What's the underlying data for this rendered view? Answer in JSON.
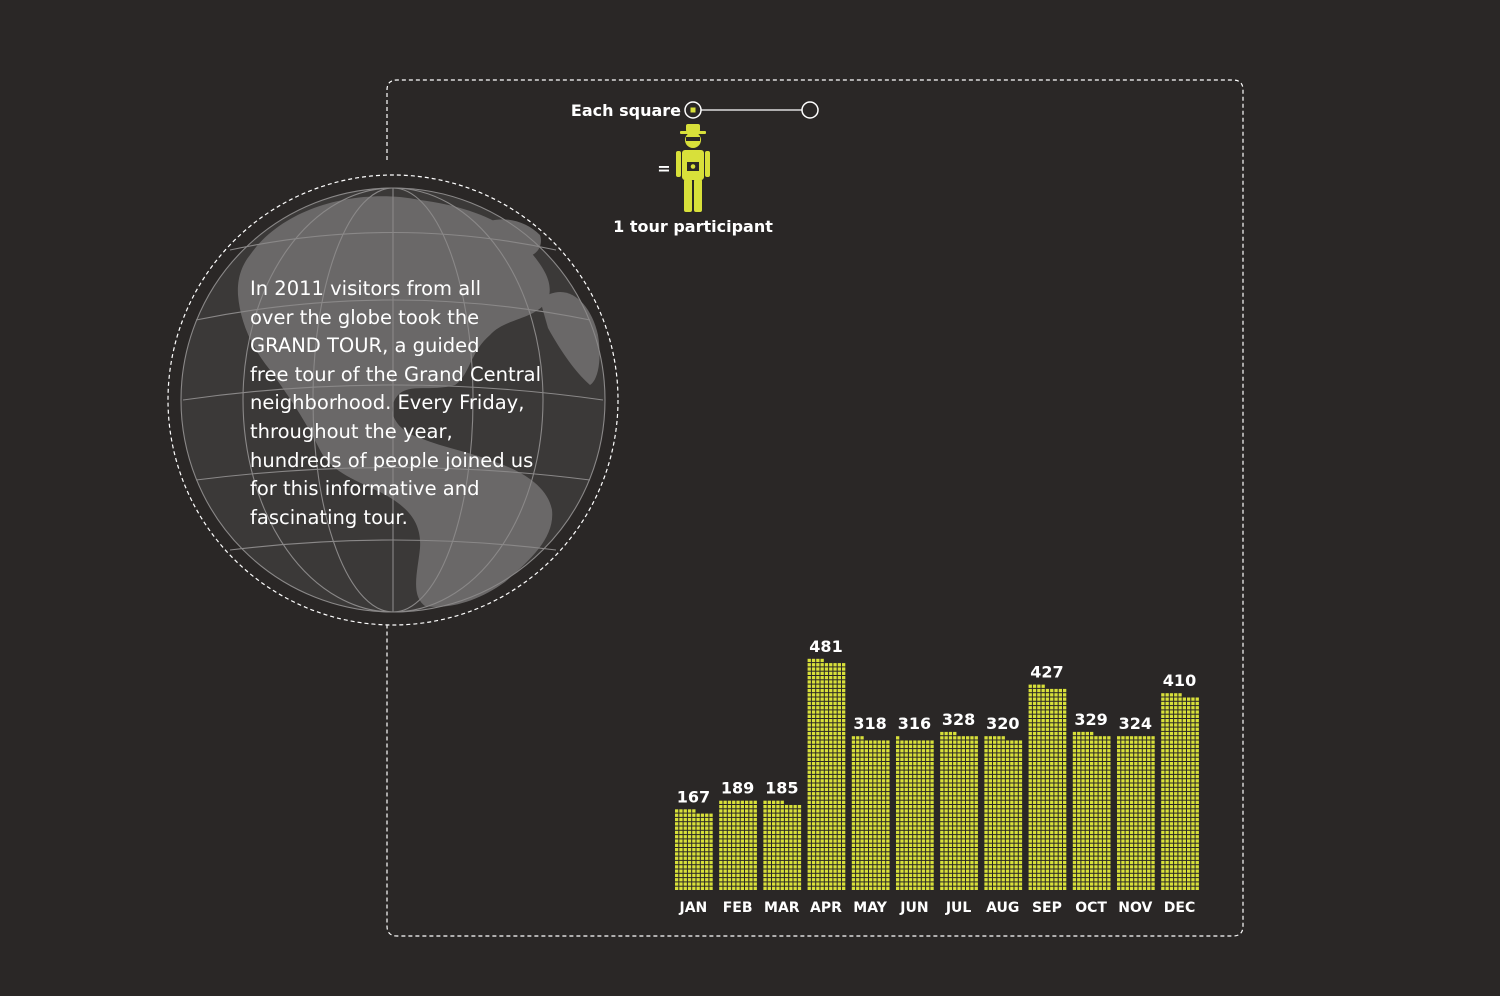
{
  "intro_text": "In 2011 visitors from all\nover the globe took the\nGRAND TOUR, a guided\nfree tour of the Grand Central\nneighborhood. Every Friday,\nthroughout the year,\nhundreds of people joined us\nfor this informative and\nfascinating tour.",
  "legend": {
    "each_square": "Each square",
    "equals": "=",
    "unit": "1 tour participant"
  },
  "colors": {
    "background": "#2a2726",
    "square": "#d8e03a",
    "text": "#ffffff",
    "globe": "#6a6868"
  },
  "icons": [
    "globe-icon",
    "tourist-icon",
    "camera-icon"
  ],
  "chart_data": {
    "type": "bar",
    "title": "",
    "xlabel": "",
    "ylabel": "",
    "categories": [
      "JAN",
      "FEB",
      "MAR",
      "APR",
      "MAY",
      "JUN",
      "JUL",
      "AUG",
      "SEP",
      "OCT",
      "NOV",
      "DEC"
    ],
    "values": [
      167,
      189,
      185,
      481,
      318,
      316,
      328,
      320,
      427,
      329,
      324,
      410
    ],
    "value_labels": [
      "167",
      "189",
      "185",
      "481",
      "318",
      "316",
      "328",
      "320",
      "427",
      "329",
      "324",
      "410"
    ],
    "unit": "1 tour participant per square",
    "grid": false,
    "legend": "top-left"
  }
}
